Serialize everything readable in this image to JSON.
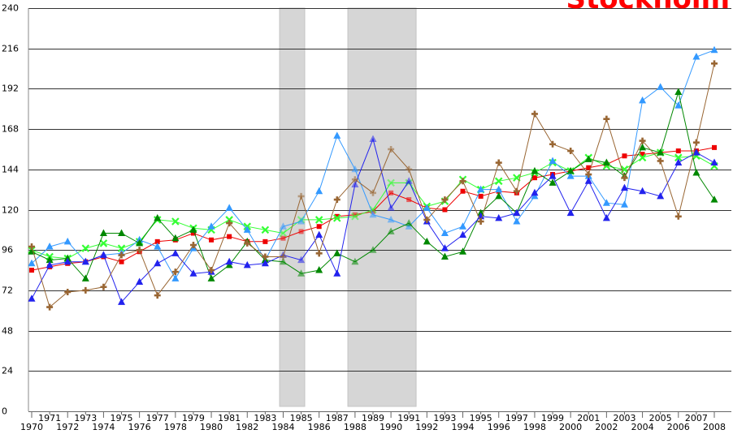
{
  "chart_data": {
    "type": "line",
    "title": "Stockholm",
    "xlabel": "",
    "ylabel": "",
    "x": [
      1970,
      1971,
      1972,
      1973,
      1974,
      1975,
      1976,
      1977,
      1978,
      1979,
      1980,
      1981,
      1982,
      1983,
      1984,
      1985,
      1986,
      1987,
      1988,
      1989,
      1990,
      1991,
      1992,
      1993,
      1994,
      1995,
      1996,
      1997,
      1998,
      1999,
      2000,
      2001,
      2002,
      2003,
      2004,
      2005,
      2006,
      2007,
      2008
    ],
    "x_tick_labels": [
      "1970",
      "1971",
      "1972",
      "1973",
      "1974",
      "1975",
      "1976",
      "1977",
      "1978",
      "1979",
      "1980",
      "1981",
      "1982",
      "1983",
      "1984",
      "1985",
      "1986",
      "1987",
      "1988",
      "1989",
      "1990",
      "1991",
      "1992",
      "1993",
      "1994",
      "1995",
      "1996",
      "1997",
      "1998",
      "1999",
      "2000",
      "2001",
      "2002",
      "2003",
      "2004",
      "2005",
      "2006",
      "2007",
      "2008"
    ],
    "xlim": [
      1970,
      2008
    ],
    "ylim": [
      0,
      240
    ],
    "y_ticks": [
      0,
      24,
      48,
      72,
      96,
      120,
      144,
      168,
      192,
      216,
      240
    ],
    "grid": "horizontal",
    "shaded_periods": [
      [
        1983.8,
        1985.2
      ],
      [
        1987.6,
        1991.4
      ]
    ],
    "series": [
      {
        "color": "#ee0000",
        "marker": "square",
        "values": [
          84,
          86,
          88,
          89,
          92,
          89,
          95,
          101,
          102,
          106,
          102,
          104,
          101,
          101,
          103,
          107,
          110,
          116,
          117,
          119,
          130,
          126,
          121,
          120,
          131,
          128,
          131,
          130,
          139,
          141,
          143,
          145,
          147,
          152,
          153,
          154,
          155,
          155,
          157
        ]
      },
      {
        "color": "#33ff33",
        "marker": "x",
        "values": [
          96,
          92,
          91,
          97,
          100,
          97,
          101,
          114,
          113,
          109,
          108,
          114,
          110,
          108,
          106,
          114,
          114,
          115,
          116,
          120,
          136,
          136,
          122,
          125,
          138,
          132,
          137,
          139,
          142,
          148,
          143,
          151,
          146,
          144,
          151,
          154,
          151,
          152,
          146
        ]
      },
      {
        "color": "#3399ff",
        "marker": "triangle",
        "values": [
          88,
          98,
          101,
          89,
          93,
          94,
          102,
          98,
          79,
          97,
          110,
          121,
          108,
          90,
          110,
          113,
          131,
          164,
          144,
          117,
          114,
          110,
          121,
          106,
          110,
          132,
          132,
          113,
          128,
          149,
          140,
          140,
          124,
          123,
          185,
          193,
          182,
          211,
          215
        ]
      },
      {
        "color": "#008800",
        "marker": "triangle",
        "values": [
          95,
          90,
          91,
          79,
          106,
          106,
          100,
          115,
          103,
          108,
          79,
          87,
          101,
          90,
          89,
          82,
          84,
          94,
          89,
          96,
          107,
          112,
          101,
          92,
          95,
          118,
          128,
          118,
          143,
          136,
          143,
          150,
          148,
          140,
          157,
          154,
          190,
          142,
          126
        ]
      },
      {
        "color": "#2222ee",
        "marker": "triangle",
        "values": [
          67,
          87,
          89,
          89,
          93,
          65,
          77,
          88,
          94,
          82,
          83,
          89,
          87,
          88,
          93,
          90,
          105,
          82,
          135,
          162,
          121,
          137,
          113,
          97,
          105,
          116,
          115,
          118,
          130,
          140,
          118,
          137,
          115,
          133,
          131,
          128,
          148,
          154,
          148
        ]
      },
      {
        "color": "#996633",
        "marker": "plus",
        "values": [
          98,
          62,
          71,
          72,
          74,
          93,
          96,
          69,
          83,
          99,
          84,
          112,
          100,
          92,
          92,
          128,
          94,
          126,
          138,
          130,
          156,
          144,
          114,
          126,
          137,
          113,
          148,
          131,
          177,
          159,
          155,
          141,
          174,
          139,
          161,
          149,
          116,
          160,
          207
        ]
      }
    ]
  }
}
